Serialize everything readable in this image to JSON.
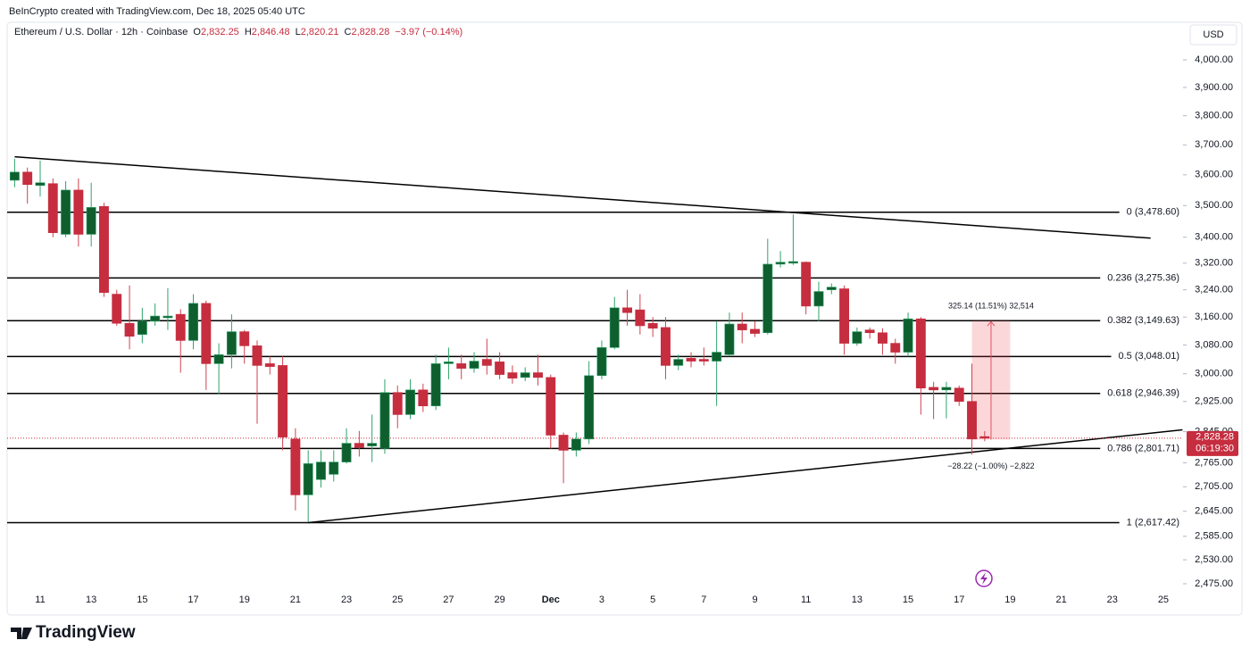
{
  "attribution": "BeInCrypto created with TradingView.com, Dec 18, 2025 05:40 UTC",
  "header": {
    "symbol": "Ethereum / U.S. Dollar · 12h · Coinbase",
    "ohlc": [
      {
        "key": "O",
        "value": "2,832.25"
      },
      {
        "key": "H",
        "value": "2,846.48"
      },
      {
        "key": "L",
        "value": "2,820.21"
      },
      {
        "key": "C",
        "value": "2,828.28"
      }
    ],
    "change": "−3.97 (−0.14%)"
  },
  "footer": {
    "logo": "TradingView"
  },
  "chart_data": {
    "type": "candlestick",
    "currency": "USD",
    "log_scale": true,
    "up_color": "#0f5f2e",
    "up_wick": "#2fa36b",
    "down_color": "#c62d3f",
    "down_wick": "#d0424f",
    "categories": [
      null,
      null,
      "11",
      null,
      null,
      null,
      "13",
      null,
      null,
      null,
      "15",
      null,
      null,
      null,
      "17",
      null,
      null,
      null,
      "19",
      null,
      null,
      null,
      "21",
      null,
      null,
      null,
      "23",
      null,
      null,
      null,
      "25",
      null,
      null,
      null,
      "27",
      null,
      null,
      null,
      "29",
      null,
      null,
      null,
      "Dec",
      null,
      null,
      null,
      "3",
      null,
      null,
      null,
      "5",
      null,
      null,
      null,
      "7",
      null,
      null,
      null,
      "9",
      null,
      null,
      null,
      "11",
      null,
      null,
      null,
      "13",
      null,
      null,
      null,
      "15",
      null,
      null,
      null,
      "17",
      null,
      null,
      null,
      "19",
      null,
      null,
      null,
      "21",
      null,
      null,
      null,
      "23",
      null,
      null,
      null,
      "25",
      null
    ],
    "open": [
      3582,
      3609,
      3565,
      3571,
      3409,
      3550,
      3409,
      3497,
      3227,
      3142,
      3110,
      3148,
      3158,
      3168,
      3093,
      3200,
      3028,
      3053,
      3118,
      3078,
      3028,
      3023,
      2826,
      2685,
      2723,
      2736,
      2767,
      2815,
      2808,
      2802,
      2949,
      2890,
      2956,
      2913,
      3028,
      3028,
      3015,
      3040,
      3033,
      3003,
      2990,
      3003,
      2990,
      2836,
      2797,
      2826,
      2995,
      3073,
      3187,
      3181,
      3142,
      3130,
      3023,
      3043,
      3040,
      3035,
      3053,
      3140,
      3125,
      3115,
      3317,
      3320,
      3323,
      3192,
      3240,
      3243,
      3085,
      3123,
      3115,
      3085,
      3060,
      3155,
      2963,
      2956,
      2961,
      2925,
      2832.25,
      null,
      null,
      null,
      null,
      null,
      null,
      null,
      null,
      null,
      null,
      null,
      null,
      null,
      null,
      null
    ],
    "high": [
      3653,
      3624,
      3647,
      3588,
      3579,
      3588,
      3574,
      3509,
      3240,
      3253,
      3187,
      3200,
      3245,
      3183,
      3227,
      3208,
      3085,
      3168,
      3123,
      3093,
      3048,
      3048,
      2854,
      2797,
      2797,
      2797,
      2854,
      2847,
      2890,
      2985,
      2968,
      2985,
      2973,
      3053,
      3073,
      3053,
      3060,
      3098,
      3060,
      3023,
      3018,
      3053,
      2998,
      2843,
      2843,
      3035,
      3093,
      3219,
      3240,
      3227,
      3160,
      3160,
      3053,
      3060,
      3073,
      3148,
      3173,
      3173,
      3148,
      3395,
      3357,
      3472,
      3325,
      3264,
      3259,
      3253,
      3130,
      3130,
      3128,
      3098,
      3173,
      3160,
      2978,
      2978,
      2968,
      3028,
      2846.48,
      null,
      null,
      null,
      null,
      null,
      null,
      null,
      null,
      null,
      null,
      null,
      null,
      null,
      null,
      null
    ],
    "low": [
      3559,
      3506,
      3529,
      3400,
      3400,
      3371,
      3371,
      3219,
      3135,
      3068,
      3085,
      3135,
      3123,
      3003,
      3068,
      2956,
      2944,
      3015,
      3028,
      2866,
      2998,
      2797,
      2647,
      2619,
      2703,
      2718,
      2763,
      2781,
      2767,
      2788,
      2854,
      2878,
      2897,
      2902,
      2985,
      2985,
      3003,
      2998,
      2985,
      2973,
      2980,
      2968,
      2801,
      2714,
      2781,
      2813,
      2985,
      3068,
      3135,
      3110,
      3103,
      2985,
      3010,
      3018,
      3023,
      2913,
      3048,
      3085,
      3103,
      3110,
      3307,
      3315,
      3168,
      3148,
      3227,
      3053,
      3078,
      3098,
      3053,
      3028,
      3048,
      2890,
      2878,
      2880,
      2913,
      2786,
      2820.21,
      null,
      null,
      null,
      null,
      null,
      null,
      null,
      null,
      null,
      null,
      null,
      null,
      null,
      null,
      null
    ],
    "close": [
      3609,
      3568,
      3574,
      3414,
      3550,
      3409,
      3494,
      3232,
      3142,
      3105,
      3148,
      3163,
      3163,
      3093,
      3200,
      3028,
      3053,
      3118,
      3078,
      3023,
      3020,
      2831,
      2685,
      2763,
      2767,
      2767,
      2815,
      2804,
      2815,
      2949,
      2890,
      2956,
      2913,
      3028,
      3033,
      3015,
      3035,
      3023,
      2998,
      2988,
      3003,
      2990,
      2836,
      2797,
      2826,
      2995,
      3073,
      3187,
      3173,
      3135,
      3128,
      3023,
      3040,
      3035,
      3035,
      3060,
      3140,
      3123,
      3113,
      3317,
      3323,
      3325,
      3192,
      3235,
      3248,
      3085,
      3118,
      3115,
      3085,
      3060,
      3155,
      2961,
      2956,
      2963,
      2925,
      2826,
      2828.28,
      null,
      null,
      null,
      null,
      null,
      null,
      null,
      null,
      null,
      null,
      null,
      null,
      null,
      null,
      null
    ],
    "ylim": [
      2411,
      4056
    ],
    "yticks": [
      {
        "value": 2475,
        "label": "2,475.00"
      },
      {
        "value": 2530,
        "label": "2,530.00"
      },
      {
        "value": 2585,
        "label": "2,585.00"
      },
      {
        "value": 2645,
        "label": "2,645.00"
      },
      {
        "value": 2705,
        "label": "2,705.00"
      },
      {
        "value": 2765,
        "label": "2,765.00"
      },
      {
        "value": 2845,
        "label": "2,845.00"
      },
      {
        "value": 2925,
        "label": "2,925.00"
      },
      {
        "value": 3000,
        "label": "3,000.00"
      },
      {
        "value": 3080,
        "label": "3,080.00"
      },
      {
        "value": 3160,
        "label": "3,160.00"
      },
      {
        "value": 3240,
        "label": "3,240.00"
      },
      {
        "value": 3320,
        "label": "3,320.00"
      },
      {
        "value": 3400,
        "label": "3,400.00"
      },
      {
        "value": 3500,
        "label": "3,500.00"
      },
      {
        "value": 3600,
        "label": "3,600.00"
      },
      {
        "value": 3700,
        "label": "3,700.00"
      },
      {
        "value": 3800,
        "label": "3,800.00"
      },
      {
        "value": 3900,
        "label": "3,900.00"
      },
      {
        "value": 4000,
        "label": "4,000.00"
      }
    ],
    "fib_levels": [
      {
        "value": 3478.6,
        "label": "0 (3,478.60)"
      },
      {
        "value": 3275.36,
        "label": "0.236 (3,275.36)"
      },
      {
        "value": 3149.63,
        "label": "0.382 (3,149.63)"
      },
      {
        "value": 3048.01,
        "label": "0.5 (3,048.01)"
      },
      {
        "value": 2946.39,
        "label": "0.618 (2,946.39)"
      },
      {
        "value": 2801.71,
        "label": "0.786 (2,801.71)"
      },
      {
        "value": 2617.42,
        "label": "1 (2,617.42)"
      }
    ],
    "trendlines": [
      {
        "x": [
          0,
          89
        ],
        "y": [
          3660,
          3397
        ]
      },
      {
        "x": [
          23,
          91.5
        ],
        "y": [
          2617.42,
          2850
        ]
      }
    ],
    "measure": {
      "x": [
        75,
        78
      ],
      "y": [
        2824.49,
        3149.63
      ],
      "top_label": "325.14 (11.51%) 32,514",
      "bottom_label": "−28.22 (−1.00%) −2,822"
    },
    "last_price": {
      "value": 2828.28,
      "label": "2,828.28",
      "countdown": "06:19:30"
    }
  }
}
